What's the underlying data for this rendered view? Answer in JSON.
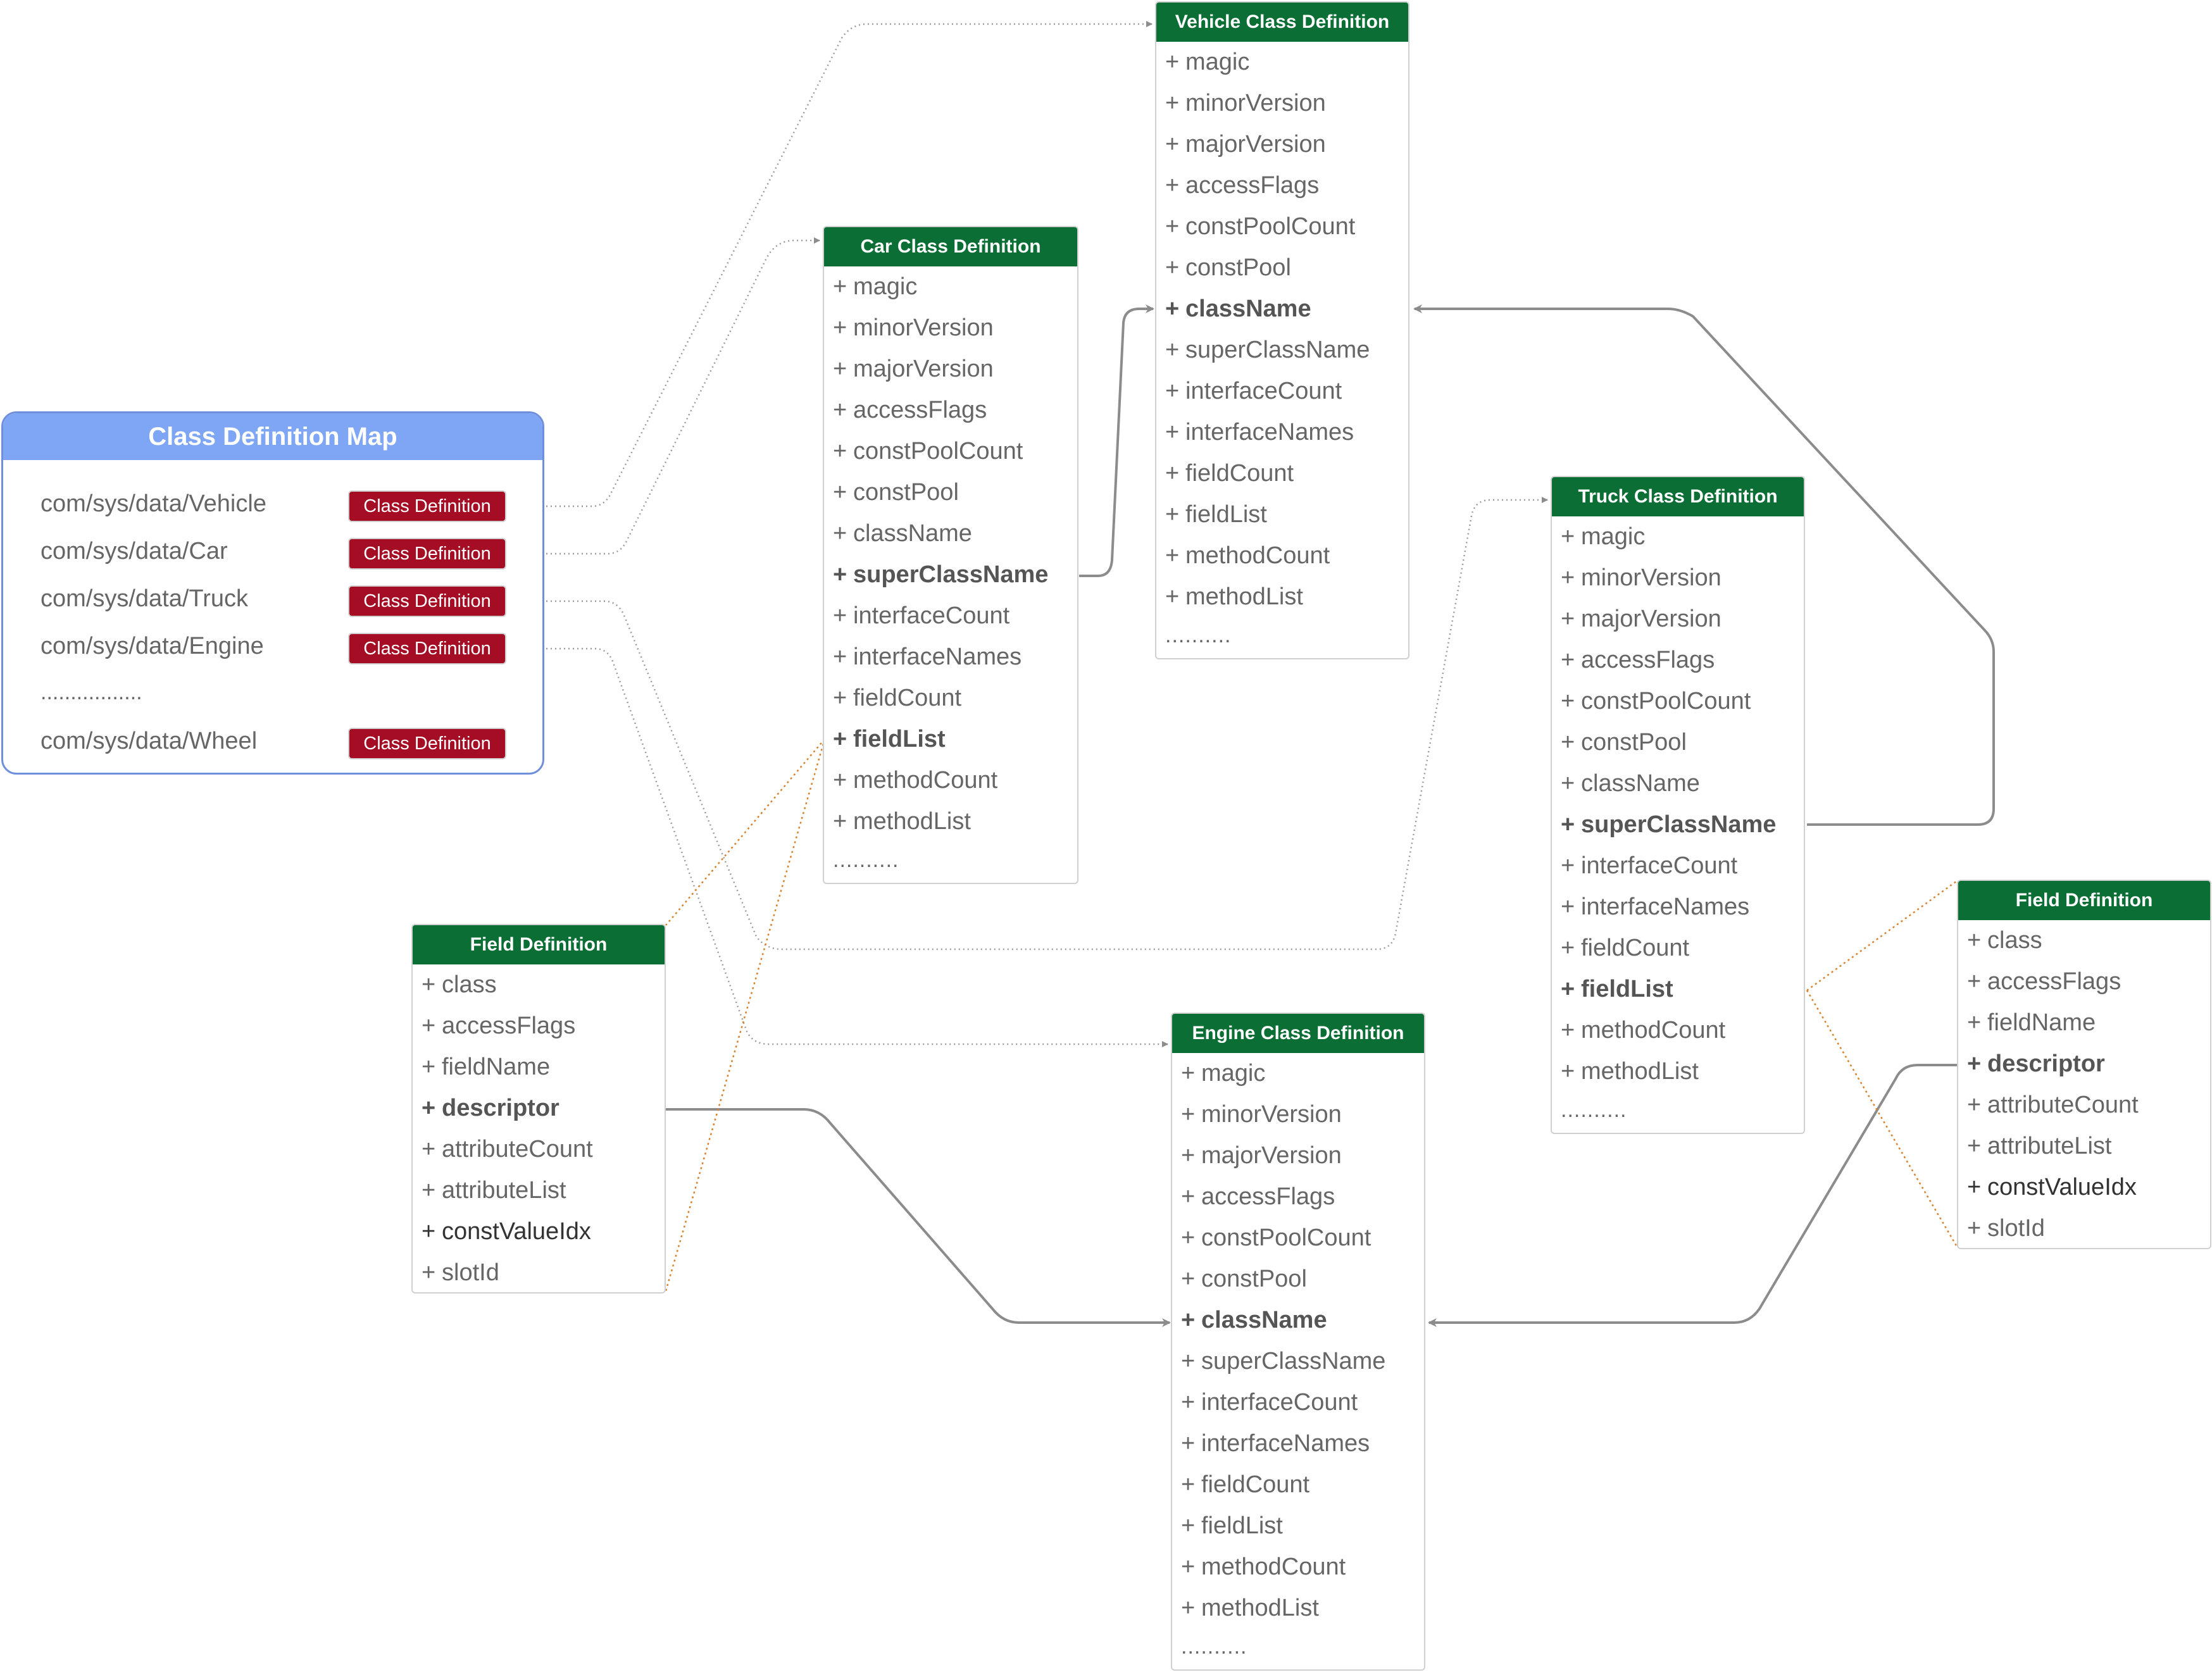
{
  "map": {
    "title": "Class Definition Map",
    "entries": [
      {
        "path": "com/sys/data/Vehicle",
        "tag": "Class Definition"
      },
      {
        "path": "com/sys/data/Car",
        "tag": "Class Definition"
      },
      {
        "path": "com/sys/data/Truck",
        "tag": "Class Definition"
      },
      {
        "path": "com/sys/data/Engine",
        "tag": "Class Definition"
      },
      {
        "path": "com/sys/data/Wheel",
        "tag": "Class Definition"
      }
    ],
    "ellipsis": "................."
  },
  "vehicle": {
    "title": "Vehicle Class Definition",
    "fields": [
      "magic",
      "minorVersion",
      "majorVersion",
      "accessFlags",
      "constPoolCount",
      "constPool",
      "className",
      "superClassName",
      "interfaceCount",
      "interfaceNames",
      "fieldCount",
      "fieldList",
      "methodCount",
      "methodList"
    ],
    "ellipsis": ".........."
  },
  "car": {
    "title": "Car Class Definition",
    "fields": [
      "magic",
      "minorVersion",
      "majorVersion",
      "accessFlags",
      "constPoolCount",
      "constPool",
      "className",
      "superClassName",
      "interfaceCount",
      "interfaceNames",
      "fieldCount",
      "fieldList",
      "methodCount",
      "methodList"
    ],
    "ellipsis": ".........."
  },
  "truck": {
    "title": "Truck Class Definition",
    "fields": [
      "magic",
      "minorVersion",
      "majorVersion",
      "accessFlags",
      "constPoolCount",
      "constPool",
      "className",
      "superClassName",
      "interfaceCount",
      "interfaceNames",
      "fieldCount",
      "fieldList",
      "methodCount",
      "methodList"
    ],
    "ellipsis": ".........."
  },
  "engine": {
    "title": "Engine Class Definition",
    "fields": [
      "magic",
      "minorVersion",
      "majorVersion",
      "accessFlags",
      "constPoolCount",
      "constPool",
      "className",
      "superClassName",
      "interfaceCount",
      "interfaceNames",
      "fieldCount",
      "fieldList",
      "methodCount",
      "methodList"
    ],
    "ellipsis": ".........."
  },
  "field_left": {
    "title": "Field Definition",
    "fields": [
      "class",
      "accessFlags",
      "fieldName",
      "descriptor",
      "attributeCount",
      "attributeList",
      "constValueIdx",
      "slotId"
    ]
  },
  "field_right": {
    "title": "Field Definition",
    "fields": [
      "class",
      "accessFlags",
      "fieldName",
      "descriptor",
      "attributeCount",
      "attributeList",
      "constValueIdx",
      "slotId"
    ]
  },
  "plus": "+",
  "colors": {
    "header_green": "#0b6e34",
    "tag_red": "#a50d24",
    "map_blue": "#7ea6f5",
    "orange_link": "#d9822b",
    "gray_link": "#8c8c8c"
  }
}
